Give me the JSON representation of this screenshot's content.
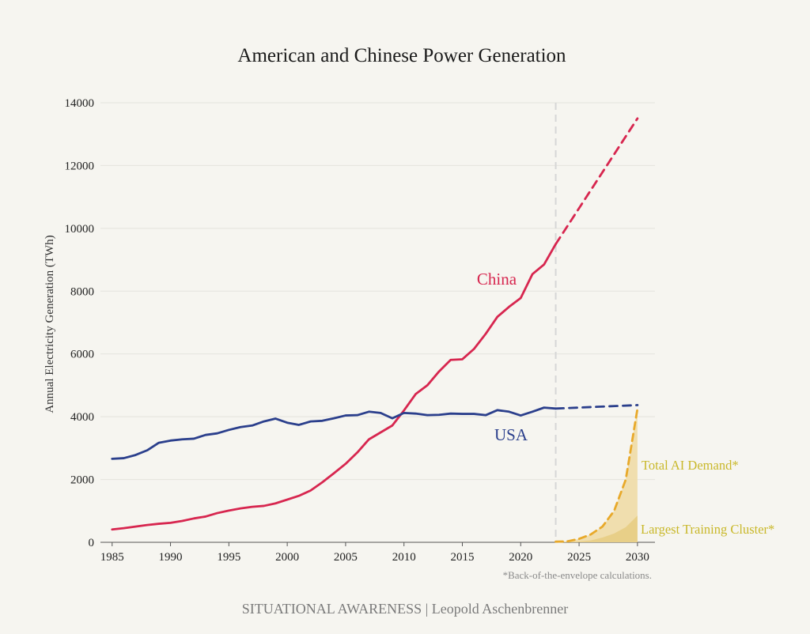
{
  "credit": "SITUATIONAL AWARENESS | Leopold Aschenbrenner",
  "chart_data": {
    "type": "line",
    "title": "American and Chinese Power Generation",
    "ylabel": "Annual Electricity Generation (TWh)",
    "xlabel": "",
    "xlim": [
      1984,
      2031.5
    ],
    "ylim": [
      0,
      14000
    ],
    "x_ticks": [
      1985,
      1990,
      1995,
      2000,
      2005,
      2010,
      2015,
      2020,
      2025,
      2030
    ],
    "y_ticks": [
      0,
      2000,
      4000,
      6000,
      8000,
      10000,
      12000,
      14000
    ],
    "grid": "horizontal",
    "projection_start": 2023,
    "footnote": "*Back-of-the-envelope calculations.",
    "colors": {
      "china": "#d7264f",
      "usa": "#2b3f8c",
      "ai": "#e8a92a",
      "ai_label": "#c9b82a",
      "fill_total": "#efdca6",
      "fill_cluster": "#e7cd84",
      "vline": "#d6d6d6",
      "grid": "#e3e3dd"
    },
    "series": [
      {
        "name": "China",
        "key": "china",
        "x": [
          1985,
          1986,
          1987,
          1988,
          1989,
          1990,
          1991,
          1992,
          1993,
          1994,
          1995,
          1996,
          1997,
          1998,
          1999,
          2000,
          2001,
          2002,
          2003,
          2004,
          2005,
          2006,
          2007,
          2008,
          2009,
          2010,
          2011,
          2012,
          2013,
          2014,
          2015,
          2016,
          2017,
          2018,
          2019,
          2020,
          2021,
          2022,
          2023
        ],
        "values": [
          410,
          450,
          500,
          550,
          590,
          620,
          680,
          760,
          820,
          930,
          1010,
          1080,
          1130,
          1160,
          1240,
          1360,
          1480,
          1650,
          1910,
          2200,
          2500,
          2860,
          3280,
          3500,
          3720,
          4200,
          4720,
          5000,
          5440,
          5810,
          5830,
          6160,
          6640,
          7180,
          7500,
          7780,
          8540,
          8850,
          9500
        ]
      },
      {
        "name": "China (projection)",
        "key": "china",
        "projection": true,
        "x": [
          2023,
          2030
        ],
        "values": [
          9500,
          13500
        ]
      },
      {
        "name": "USA",
        "key": "usa",
        "x": [
          1985,
          1986,
          1987,
          1988,
          1989,
          1990,
          1991,
          1992,
          1993,
          1994,
          1995,
          1996,
          1997,
          1998,
          1999,
          2000,
          2001,
          2002,
          2003,
          2004,
          2005,
          2006,
          2007,
          2008,
          2009,
          2010,
          2011,
          2012,
          2013,
          2014,
          2015,
          2016,
          2017,
          2018,
          2019,
          2020,
          2021,
          2022,
          2023
        ],
        "values": [
          2660,
          2680,
          2780,
          2930,
          3170,
          3240,
          3280,
          3300,
          3420,
          3470,
          3580,
          3670,
          3720,
          3850,
          3940,
          3810,
          3740,
          3850,
          3870,
          3950,
          4040,
          4050,
          4160,
          4120,
          3950,
          4120,
          4100,
          4050,
          4060,
          4100,
          4090,
          4090,
          4050,
          4210,
          4160,
          4040,
          4160,
          4290,
          4260
        ]
      },
      {
        "name": "USA (projection)",
        "key": "usa",
        "projection": true,
        "x": [
          2023,
          2030
        ],
        "values": [
          4260,
          4370
        ]
      },
      {
        "name": "Total AI Demand*",
        "key": "ai",
        "projection": true,
        "x": [
          2023,
          2024,
          2025,
          2026,
          2027,
          2028,
          2029,
          2030
        ],
        "values": [
          20,
          30,
          110,
          250,
          500,
          1000,
          2000,
          4250
        ]
      },
      {
        "name": "Largest Training Cluster*",
        "key": "cluster",
        "x": [
          2023,
          2024,
          2025,
          2026,
          2027,
          2028,
          2029,
          2030
        ],
        "values": [
          5,
          10,
          25,
          60,
          150,
          280,
          480,
          850
        ]
      }
    ],
    "annotations": [
      {
        "text": "China",
        "key": "china"
      },
      {
        "text": "USA",
        "key": "usa"
      },
      {
        "text": "Total AI Demand*",
        "key": "ai"
      },
      {
        "text": "Largest Training Cluster*",
        "key": "cluster"
      }
    ]
  }
}
